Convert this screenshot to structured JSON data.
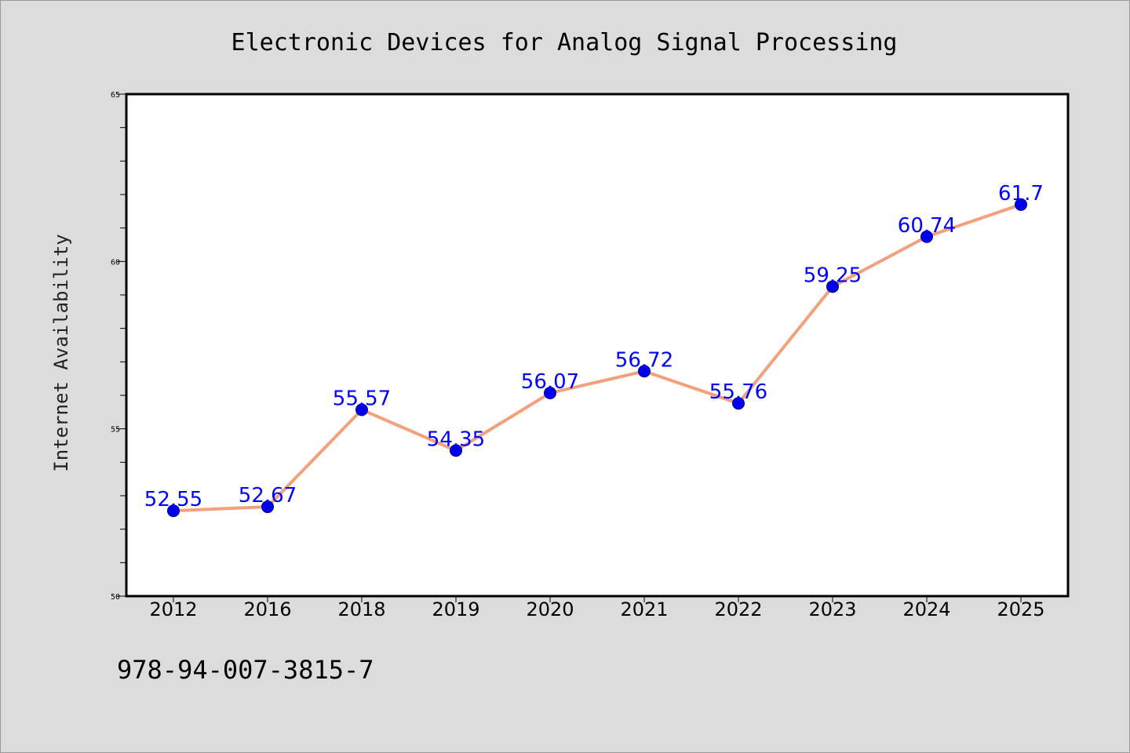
{
  "chart_data": {
    "type": "line",
    "title": "Electronic Devices for Analog Signal Processing",
    "xlabel": "",
    "ylabel": "Internet Availability",
    "categories": [
      "2012",
      "2016",
      "2018",
      "2019",
      "2020",
      "2021",
      "2022",
      "2023",
      "2024",
      "2025"
    ],
    "series": [
      {
        "values": [
          52.55,
          52.67,
          55.57,
          54.35,
          56.07,
          56.72,
          55.76,
          59.25,
          60.74,
          61.7
        ],
        "labels": [
          "52.55",
          "52.67",
          "55.57",
          "54.35",
          "56.07",
          "56.72",
          "55.76",
          "59.25",
          "60.74",
          "61.7"
        ],
        "line_color": "#f4a07c",
        "marker_color": "#0000ee",
        "label_color": "#0000ff"
      }
    ],
    "ylim": [
      50,
      65
    ],
    "yticks": [
      "50",
      "55",
      "60",
      "65"
    ],
    "grid": false,
    "legend": "none"
  },
  "footer": {
    "text": "978-94-007-3815-7"
  }
}
